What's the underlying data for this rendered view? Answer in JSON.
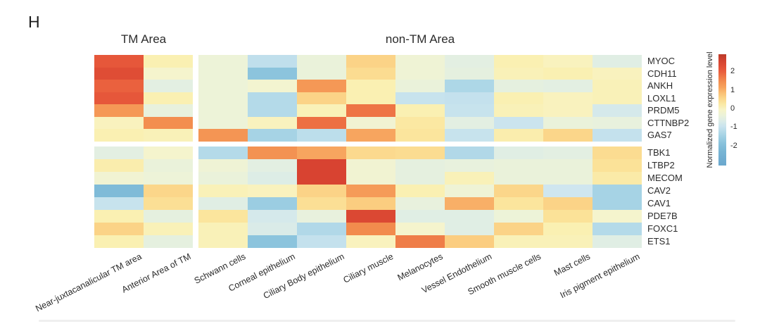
{
  "panel_label": "H",
  "group_headers": {
    "tm": "TM Area",
    "non_tm": "non-TM Area"
  },
  "chart_data": {
    "type": "heatmap",
    "column_groups": [
      {
        "label": "TM Area",
        "columns": [
          "Near-juxtacanalicular TM area",
          "Anterior Area of TM"
        ]
      },
      {
        "label": "non-TM Area",
        "columns": [
          "Schwann cells",
          "Corneal epithelium",
          "Ciliary Body epithelium",
          "Ciliary muscle",
          "Melanocytes",
          "Vessel Endothelium",
          "Smooth muscle cells",
          "Mast cells",
          "Iris pigment epithelium"
        ]
      }
    ],
    "row_groups": [
      {
        "rows": [
          {
            "gene": "MYOC",
            "values": [
              2.1,
              0.1,
              -0.35,
              -1.1,
              -0.4,
              0.6,
              -0.3,
              -0.55,
              0.1,
              0.0,
              -0.6
            ]
          },
          {
            "gene": "CDH11",
            "values": [
              2.3,
              -0.15,
              -0.35,
              -1.8,
              -0.4,
              0.45,
              -0.3,
              -0.5,
              0.05,
              0.1,
              0.0
            ]
          },
          {
            "gene": "ANKH",
            "values": [
              1.95,
              -0.55,
              -0.35,
              -0.2,
              1.3,
              0.1,
              -0.4,
              -1.35,
              -0.5,
              -0.55,
              0.05
            ]
          },
          {
            "gene": "LOXL1",
            "values": [
              2.1,
              0.1,
              -0.35,
              -1.25,
              0.6,
              0.1,
              -1.0,
              -1.05,
              0.1,
              0.0,
              0.05
            ]
          },
          {
            "gene": "PRDM5",
            "values": [
              1.3,
              -0.45,
              -0.35,
              -1.25,
              0.05,
              1.75,
              0.1,
              -1.0,
              0.05,
              0.0,
              -0.8
            ]
          },
          {
            "gene": "CTTNBP2",
            "values": [
              0.0,
              1.45,
              -0.35,
              0.0,
              1.8,
              -0.25,
              0.25,
              -0.55,
              -0.95,
              -0.4,
              -0.45
            ]
          },
          {
            "gene": "GAS7",
            "values": [
              0.1,
              0.05,
              1.35,
              -1.45,
              -1.15,
              1.1,
              0.3,
              -1.0,
              0.15,
              0.55,
              -1.05
            ]
          }
        ]
      },
      {
        "rows": [
          {
            "gene": "TBK1",
            "values": [
              -0.55,
              -0.15,
              -1.25,
              1.4,
              1.1,
              0.5,
              0.45,
              -1.3,
              -0.6,
              -0.55,
              0.45
            ]
          },
          {
            "gene": "LTBP2",
            "values": [
              0.15,
              -0.4,
              -0.3,
              -0.55,
              2.5,
              -0.25,
              -0.5,
              -0.45,
              -0.4,
              -0.4,
              0.35
            ]
          },
          {
            "gene": "MECOM",
            "values": [
              -0.25,
              -0.35,
              -0.4,
              -0.65,
              2.5,
              -0.25,
              -0.5,
              0.05,
              -0.4,
              -0.4,
              0.2
            ]
          },
          {
            "gene": "CAV2",
            "values": [
              -2.1,
              0.55,
              0.05,
              0.0,
              0.6,
              1.25,
              0.1,
              -0.3,
              0.55,
              -0.9,
              -1.45
            ]
          },
          {
            "gene": "CAV1",
            "values": [
              -1.0,
              0.4,
              -0.6,
              -1.6,
              0.4,
              0.7,
              -0.45,
              1.0,
              0.3,
              0.6,
              -1.45
            ]
          },
          {
            "gene": "PDE7B",
            "values": [
              0.1,
              -0.5,
              0.3,
              -0.8,
              -0.45,
              2.4,
              -0.6,
              -0.6,
              -0.35,
              0.35,
              -0.15
            ]
          },
          {
            "gene": "FOXC1",
            "values": [
              0.6,
              0.05,
              0.05,
              -0.7,
              -1.3,
              1.5,
              -0.15,
              -0.6,
              0.6,
              0.1,
              -1.25
            ]
          },
          {
            "gene": "ETS1",
            "values": [
              0.1,
              -0.5,
              0.05,
              -1.8,
              -1.05,
              0.0,
              1.65,
              0.7,
              0.05,
              0.05,
              -0.6
            ]
          }
        ]
      }
    ],
    "colorbar": {
      "title": "Normalized gene expression level",
      "tick_labels": [
        "2",
        "1",
        "0",
        "-1",
        "-2"
      ],
      "tick_values": [
        2,
        1,
        0,
        -1,
        -2
      ],
      "domain_top": 2.92,
      "domain_bottom": -3.08
    },
    "colorscale": [
      [
        3.0,
        "#B53A27"
      ],
      [
        2.5,
        "#D84331"
      ],
      [
        2.0,
        "#E95C3C"
      ],
      [
        1.5,
        "#F28B4D"
      ],
      [
        1.1,
        "#F7A55F"
      ],
      [
        0.7,
        "#FBCD80"
      ],
      [
        0.35,
        "#FBE298"
      ],
      [
        0.1,
        "#FAF0B2"
      ],
      [
        -0.1,
        "#F7F4CA"
      ],
      [
        -0.35,
        "#EDF3D8"
      ],
      [
        -0.6,
        "#E0EEE4"
      ],
      [
        -0.9,
        "#CFE6EF"
      ],
      [
        -1.2,
        "#B8DCEA"
      ],
      [
        -1.5,
        "#A2D1E4"
      ],
      [
        -1.8,
        "#8CC4DD"
      ],
      [
        -2.2,
        "#7BB8D6"
      ],
      [
        -3.0,
        "#6BA8CE"
      ]
    ]
  }
}
